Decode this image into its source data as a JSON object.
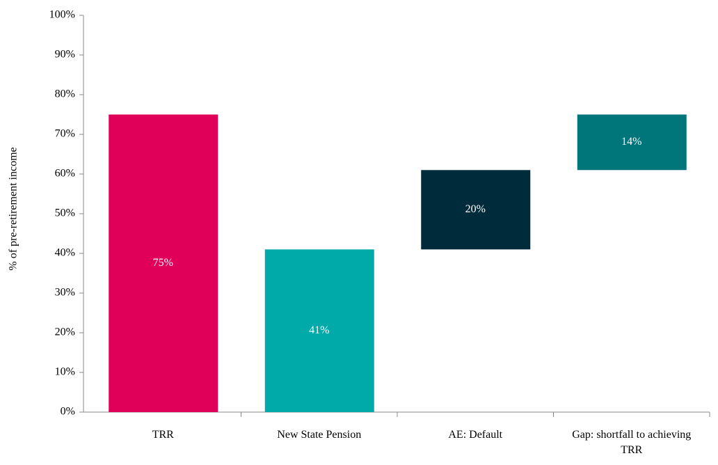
{
  "chart_data": {
    "type": "waterfall",
    "y_label": "% of pre-retirement income",
    "categories": [
      "TRR",
      "New State Pension",
      "AE: Default",
      "Gap: shortfall to achieving TRR"
    ],
    "values": [
      75,
      41,
      20,
      14
    ],
    "value_labels": [
      "75%",
      "41%",
      "20%",
      "14%"
    ],
    "measure": [
      "total",
      "relative",
      "relative",
      "relative"
    ],
    "colors": [
      "#e0005a",
      "#00aaa8",
      "#002b3a",
      "#00757a"
    ],
    "ylim": [
      0,
      100
    ],
    "yticks": [
      {
        "value": 0,
        "label": "0%"
      },
      {
        "value": 10,
        "label": "10%"
      },
      {
        "value": 20,
        "label": "20%"
      },
      {
        "value": 30,
        "label": "30%"
      },
      {
        "value": 40,
        "label": "40%"
      },
      {
        "value": 50,
        "label": "50%"
      },
      {
        "value": 60,
        "label": "60%"
      },
      {
        "value": 70,
        "label": "70%"
      },
      {
        "value": 80,
        "label": "80%"
      },
      {
        "value": 90,
        "label": "90%"
      },
      {
        "value": 100,
        "label": "100%"
      }
    ],
    "grid": false
  }
}
